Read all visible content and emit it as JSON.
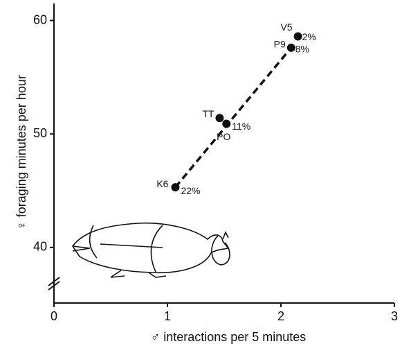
{
  "chart_data": {
    "type": "scatter",
    "x_label": "♂ interactions per 5 minutes",
    "y_label": "♀ foraging minutes per hour",
    "x": [
      2.15,
      2.09,
      1.46,
      1.52,
      1.07
    ],
    "values": [
      58.6,
      57.6,
      51.4,
      50.9,
      45.3
    ],
    "point_labels": [
      "V5",
      "P9",
      "TT",
      "PO",
      "K6"
    ],
    "point_notes": [
      "2%",
      "8%",
      null,
      "11%",
      "22%"
    ],
    "color": "#111111",
    "fit_line": {
      "x": [
        1.07,
        2.09
      ],
      "y": [
        45.3,
        57.6
      ]
    },
    "xlim": [
      0,
      3
    ],
    "xticks": [
      0,
      1,
      2,
      3
    ],
    "ylim": [
      35.1,
      61.5
    ],
    "yticks": [
      40,
      50,
      60
    ]
  }
}
